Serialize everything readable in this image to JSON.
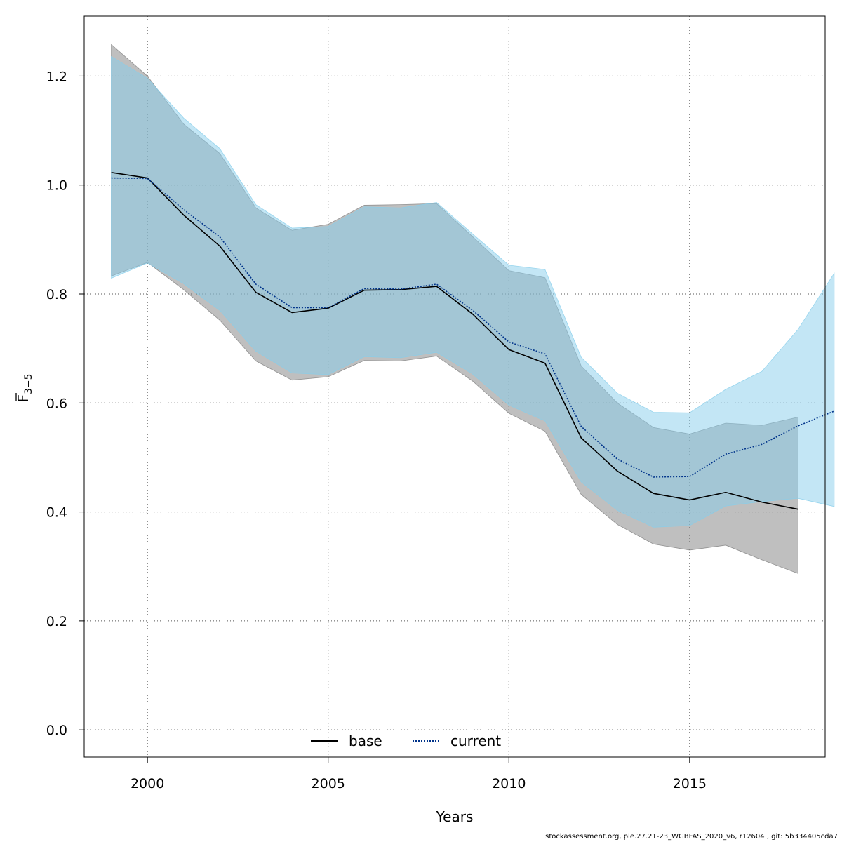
{
  "chart_data": {
    "type": "line",
    "xlabel": "Years",
    "ylabel": {
      "main": "F",
      "sub": "3−5"
    },
    "xlim": [
      1998.25,
      2018.75
    ],
    "ylim": [
      -0.05,
      1.31
    ],
    "x_ticks": [
      2000,
      2005,
      2010,
      2015
    ],
    "y_ticks": [
      0.0,
      0.2,
      0.4,
      0.6,
      0.8,
      1.0,
      1.2
    ],
    "y_tick_labels": [
      "0.0",
      "0.2",
      "0.4",
      "0.6",
      "0.8",
      "1.0",
      "1.2"
    ],
    "grid": true,
    "legend_position": "bottom-center",
    "series": [
      {
        "name": "base",
        "color": "#000000",
        "band_color": "#808080",
        "line_style": "solid",
        "x": [
          1999,
          2000,
          2001,
          2002,
          2003,
          2004,
          2005,
          2006,
          2007,
          2008,
          2009,
          2010,
          2011,
          2012,
          2013,
          2014,
          2015,
          2016,
          2017,
          2018
        ],
        "values": [
          1.023,
          1.013,
          0.945,
          0.888,
          0.803,
          0.766,
          0.774,
          0.807,
          0.808,
          0.814,
          0.763,
          0.698,
          0.673,
          0.536,
          0.475,
          0.434,
          0.422,
          0.436,
          0.418,
          0.405
        ],
        "lower": [
          0.833,
          0.858,
          0.808,
          0.752,
          0.677,
          0.642,
          0.648,
          0.678,
          0.677,
          0.686,
          0.64,
          0.581,
          0.548,
          0.432,
          0.377,
          0.341,
          0.33,
          0.339,
          0.312,
          0.287
        ],
        "upper": [
          1.258,
          1.2,
          1.112,
          1.058,
          0.958,
          0.917,
          0.928,
          0.963,
          0.964,
          0.966,
          0.905,
          0.843,
          0.83,
          0.668,
          0.6,
          0.555,
          0.543,
          0.563,
          0.559,
          0.574
        ]
      },
      {
        "name": "current",
        "color": "#00338a",
        "band_color": "#87ceeb",
        "line_style": "dotted",
        "x": [
          1999,
          2000,
          2001,
          2002,
          2003,
          2004,
          2005,
          2006,
          2007,
          2008,
          2009,
          2010,
          2011,
          2012,
          2013,
          2014,
          2015,
          2016,
          2017,
          2018,
          2019
        ],
        "values": [
          1.013,
          1.012,
          0.955,
          0.905,
          0.818,
          0.775,
          0.775,
          0.81,
          0.809,
          0.818,
          0.77,
          0.712,
          0.69,
          0.557,
          0.497,
          0.464,
          0.465,
          0.506,
          0.524,
          0.558,
          0.585
        ],
        "lower": [
          0.829,
          0.857,
          0.819,
          0.77,
          0.695,
          0.655,
          0.652,
          0.685,
          0.683,
          0.693,
          0.653,
          0.596,
          0.567,
          0.455,
          0.403,
          0.372,
          0.375,
          0.411,
          0.419,
          0.425,
          0.41
        ],
        "upper": [
          1.236,
          1.196,
          1.123,
          1.067,
          0.964,
          0.921,
          0.924,
          0.96,
          0.958,
          0.968,
          0.91,
          0.853,
          0.845,
          0.684,
          0.618,
          0.583,
          0.582,
          0.625,
          0.658,
          0.735,
          0.838
        ]
      }
    ]
  },
  "footer": {
    "source": "stockassessment.org, ple.27.21-23_WGBFAS_2020_v6, r12604 , git: 5b334405cda7"
  }
}
